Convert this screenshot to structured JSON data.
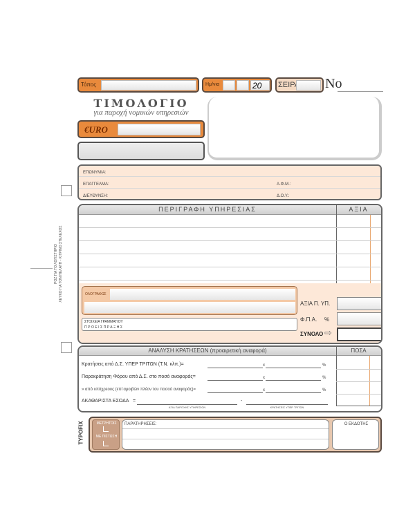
{
  "header": {
    "place_label": "Τόπος",
    "date_label": "Ημ/νια",
    "year_prefix": "20",
    "series_label": "ΣΕΙΡΑ",
    "number_label": "No"
  },
  "title": {
    "main": "ΤΙΜΟΛΟΓΙΟ",
    "subtitle": "για παροχή νομικών υπηρεσιών",
    "currency": "€URO"
  },
  "client": {
    "name_label": "ΕΠΩΝΥΜΙΑ:",
    "profession_label": "ΕΠΑΓΓΕΛΜΑ:",
    "vat_label": "Α.Φ.Μ.:",
    "address_label": "ΔΙΕΥΘΥΝΣΗ:",
    "tax_office_label": "Δ.Ο.Υ.:"
  },
  "side_note": {
    "line1": "ΡΟΖ ΓΙΑ ΤΟ ΛΟΓΙΣΤΗΡΙΟ",
    "line2": "ΛΕΥΚΟ ΓΙΑ ΤΟΝ ΠΕΛΑΤΗ - ΚΙΤΡΙΝΟ ΣΤΕΛΕΧΟΣ"
  },
  "services": {
    "description_header": "ΠΕΡΙΓΡΑΦΗ ΥΠΗΡΕΣΙΑΣ",
    "value_header": "ΑΞΙΑ",
    "in_words_label": "ΟΛΟΓΡΑΦΩΣ",
    "stamp_label_1": "ΣΤΟΙΧΕΙΑ ΓΡΑΜΜΑΤΙΟΥ",
    "stamp_label_2": "ΠΡΟΕΙΣΠΡΑΞΗΣ",
    "net_value_label": "ΑΞΙΑ Π. ΥΠ.",
    "vat_label": "Φ.Π.Α.",
    "percent": "%",
    "total_label": "ΣΥΝΟΛΟ"
  },
  "deductions": {
    "header": "ΑΝΑΛΥΣΗ ΚΡΑΤΗΣΕΩΝ (προαιρετική αναφορά)",
    "amounts_header": "ΠΟΣΑ",
    "rows": [
      {
        "label": "Κρατήσεις από Δ.Σ. ΥΠΕΡ ΤΡΙΤΩΝ (Τ.Ν. κλπ.)=",
        "x": "x",
        "pct": "%"
      },
      {
        "label": "Παρακράτηση Φόρου από Δ.Σ. στο ποσό αναφοράς=",
        "x": "x",
        "pct": "%"
      },
      {
        "label": "» από υπόχρεους (επί αμοιβών πλέον του ποσού αναφοράς)=",
        "x": "x",
        "pct": "%"
      }
    ],
    "gross_label": "ΑΚΑΘΑΡΙΣΤΑ ΕΣΟΔΑ",
    "equals": "=",
    "minus": "-",
    "sub1": "ΑΞΙΑ ΠΑΡΟΧΗΣ ΥΠΗΡΕΣΙΩΝ",
    "sub2": "ΚΡΑΤΗΣΕΙΣ ΥΠΕΡ ΤΡΙΤΩΝ"
  },
  "footer": {
    "cash_label": "ΜΕΤΡΗΤΟΙΣ",
    "credit_label": "ΜΕ ΠΙΣΤΩΣΗ",
    "remarks_label": "ΠΑΡΑΤΗΡΗΣΕΙΣ:",
    "issuer_label": "Ο ΕΚΔΟΤΗΣ",
    "brand": "TYPOFIX"
  }
}
